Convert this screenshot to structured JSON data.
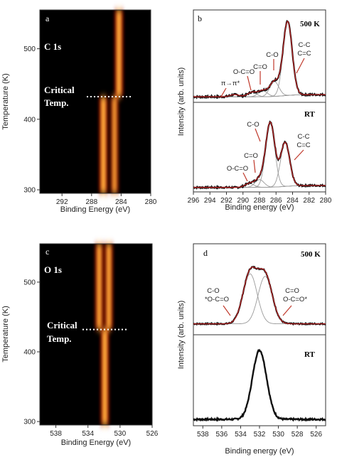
{
  "chart_data": [
    {
      "panel": "a",
      "type": "heatmap",
      "element_label": "C 1s",
      "annotation": {
        "line1": "Critical",
        "line2": "Temp.",
        "temperature_K": 432
      },
      "xlabel": "Binding Energy (eV)",
      "ylabel": "Temperature (K)",
      "xlim": [
        295,
        280
      ],
      "ylim": [
        295,
        555
      ],
      "xticks": [
        "292",
        "288",
        "284",
        "280"
      ],
      "yticks": [
        "300",
        "400",
        "500"
      ],
      "bands": [
        {
          "x": 284.3,
          "t_from": 432,
          "t_to": 555,
          "intensity": 1.0
        },
        {
          "x": 286.4,
          "t_from": 295,
          "t_to": 432,
          "intensity": 1.0
        },
        {
          "x": 284.9,
          "t_from": 295,
          "t_to": 432,
          "intensity": 0.8
        }
      ]
    },
    {
      "panel": "b",
      "type": "line",
      "xlabel": "Binding energy (eV)",
      "ylabel": "Intensity (arb. units)",
      "xlim": [
        296,
        280
      ],
      "xticks": [
        "296",
        "294",
        "292",
        "290",
        "288",
        "286",
        "284",
        "282",
        "280"
      ],
      "top": {
        "condition": "500 K",
        "peaks": [
          {
            "label": "C-C C=C",
            "line1": "C-C",
            "line2": "C=C",
            "x": 284.6,
            "height": 1.0
          },
          {
            "label": "C-O",
            "x": 286.2,
            "height": 0.2
          },
          {
            "label": "C=O",
            "x": 287.6,
            "height": 0.08
          },
          {
            "label": "O-C=O",
            "x": 288.9,
            "height": 0.06
          },
          {
            "label": "π→π*",
            "x": 291.0,
            "height": 0.03
          }
        ]
      },
      "bottom": {
        "condition": "RT",
        "peaks": [
          {
            "label": "C-O",
            "x": 286.7,
            "height": 1.0
          },
          {
            "label": "C-C C=C",
            "line1": "C-C",
            "line2": "C=C",
            "x": 284.9,
            "height": 0.68
          },
          {
            "label": "C=O",
            "x": 288.0,
            "height": 0.12
          },
          {
            "label": "O-C=O",
            "x": 289.2,
            "height": 0.06
          }
        ]
      }
    },
    {
      "panel": "c",
      "type": "heatmap",
      "element_label": "O 1s",
      "annotation": {
        "line1": "Critical",
        "line2": "Temp.",
        "temperature_K": 432
      },
      "xlabel": "Binding Energy (eV)",
      "ylabel": "Temperature (K)",
      "xlim": [
        540,
        526
      ],
      "ylim": [
        295,
        555
      ],
      "xticks": [
        "538",
        "534",
        "530",
        "526"
      ],
      "yticks": [
        "300",
        "400",
        "500"
      ],
      "bands": [
        {
          "x": 532.6,
          "t_from": 432,
          "t_to": 555,
          "intensity": 0.9
        },
        {
          "x": 531.4,
          "t_from": 432,
          "t_to": 555,
          "intensity": 0.9
        },
        {
          "x": 531.9,
          "t_from": 295,
          "t_to": 432,
          "intensity": 1.0
        }
      ]
    },
    {
      "panel": "d",
      "type": "line",
      "xlabel": "Binding energy (eV)",
      "ylabel": "Intensity (arb. units)",
      "xlim": [
        539,
        525
      ],
      "xticks": [
        "538",
        "536",
        "534",
        "532",
        "530",
        "528",
        "526"
      ],
      "top": {
        "condition": "500 K",
        "peaks": [
          {
            "label": "C-O *O-C=O",
            "line1": "C-O",
            "line2": "*O-C=O",
            "x": 533.0,
            "height": 1.0
          },
          {
            "label": "C=O O-C=O*",
            "line1": "C=O",
            "line2": "O-C=O*",
            "x": 531.4,
            "height": 0.95
          }
        ]
      },
      "bottom": {
        "condition": "RT",
        "peaks": [
          {
            "label": "",
            "x": 532.0,
            "height": 1.0
          }
        ]
      }
    }
  ]
}
